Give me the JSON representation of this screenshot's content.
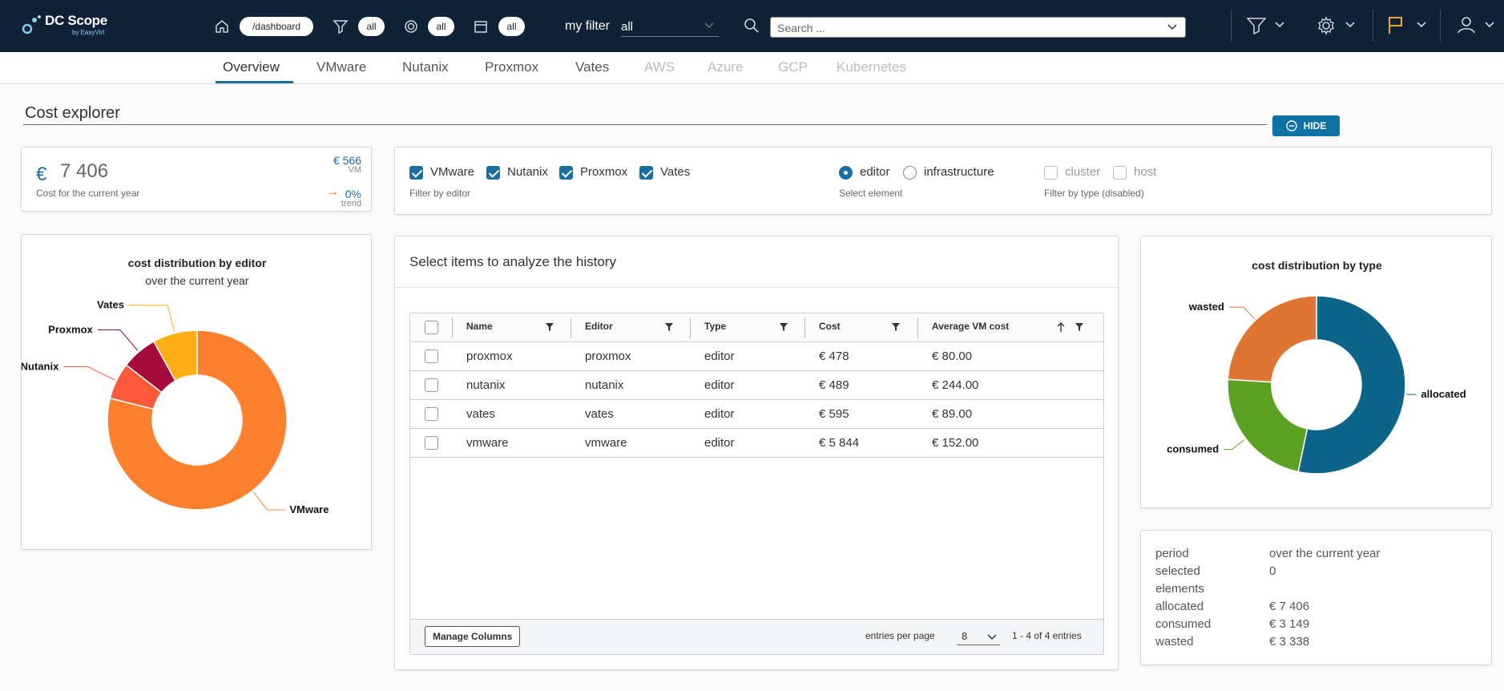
{
  "header": {
    "logo_text": "DC Scope",
    "logo_sub": "by EasyVirt",
    "path_pill": "/dashboard",
    "filter_pill": "all",
    "target_pill": "all",
    "calendar_pill": "all",
    "my_filter_label": "my filter",
    "my_filter_value": "all",
    "search_placeholder": "Search ..."
  },
  "tabs": [
    {
      "label": "Overview",
      "state": "active"
    },
    {
      "label": "VMware",
      "state": "normal"
    },
    {
      "label": "Nutanix",
      "state": "normal"
    },
    {
      "label": "Proxmox",
      "state": "normal"
    },
    {
      "label": "Vates",
      "state": "normal"
    },
    {
      "label": "AWS",
      "state": "disabled"
    },
    {
      "label": "Azure",
      "state": "disabled"
    },
    {
      "label": "GCP",
      "state": "disabled"
    },
    {
      "label": "Kubernetes",
      "state": "disabled"
    }
  ],
  "page": {
    "title": "Cost explorer",
    "hide_label": "HIDE"
  },
  "kpi": {
    "currency": "€",
    "value": "7 406",
    "label": "Cost for the current year",
    "vm_value": "€ 566",
    "vm_label": "VM",
    "trend_value": "0%",
    "trend_label": "trend"
  },
  "filters": {
    "editors": [
      {
        "label": "VMware",
        "checked": true
      },
      {
        "label": "Nutanix",
        "checked": true
      },
      {
        "label": "Proxmox",
        "checked": true
      },
      {
        "label": "Vates",
        "checked": true
      }
    ],
    "editor_caption": "Filter by editor",
    "elements": [
      {
        "label": "editor",
        "selected": true
      },
      {
        "label": "infrastructure",
        "selected": false
      }
    ],
    "element_caption": "Select element",
    "types": [
      {
        "label": "cluster",
        "checked": false
      },
      {
        "label": "host",
        "checked": false
      }
    ],
    "type_caption": "Filter by type (disabled)"
  },
  "editor_chart": {
    "title": "cost distribution by editor",
    "subtitle": "over the current year"
  },
  "type_chart": {
    "title": "cost distribution by type"
  },
  "chart_data": [
    {
      "type": "pie",
      "title": "cost distribution by editor",
      "subtitle": "over the current year",
      "categories": [
        "VMware",
        "Nutanix",
        "Proxmox",
        "Vates"
      ],
      "values": [
        5844,
        489,
        478,
        595
      ],
      "colors": [
        "#fe7f2d",
        "#fd5a3a",
        "#a50a3a",
        "#fdae14"
      ]
    },
    {
      "type": "pie",
      "title": "cost distribution by type",
      "categories": [
        "allocated",
        "consumed",
        "wasted"
      ],
      "values": [
        7406,
        3149,
        3338
      ],
      "colors": [
        "#0c6488",
        "#5ba223",
        "#df7533"
      ]
    }
  ],
  "history": {
    "title": "Select items to analyze the history",
    "columns": [
      "Name",
      "Editor",
      "Type",
      "Cost",
      "Average VM cost"
    ],
    "rows": [
      [
        "proxmox",
        "proxmox",
        "editor",
        "€ 478",
        "€ 80.00"
      ],
      [
        "nutanix",
        "nutanix",
        "editor",
        "€ 489",
        "€ 244.00"
      ],
      [
        "vates",
        "vates",
        "editor",
        "€ 595",
        "€ 89.00"
      ],
      [
        "vmware",
        "vmware",
        "editor",
        "€ 5 844",
        "€ 152.00"
      ]
    ],
    "manage_columns": "Manage Columns",
    "entries_label": "entries per page",
    "entries_value": "8",
    "range_text": "1 - 4 of 4 entries"
  },
  "summary": {
    "items": [
      {
        "label": "period",
        "value": "over the current year"
      },
      {
        "label": "selected",
        "value": "0"
      },
      {
        "label": "elements",
        "value": ""
      },
      {
        "label": "allocated",
        "value": "€ 7 406"
      },
      {
        "label": "consumed",
        "value": "€ 3 149"
      },
      {
        "label": "wasted",
        "value": "€ 3 338"
      }
    ]
  }
}
